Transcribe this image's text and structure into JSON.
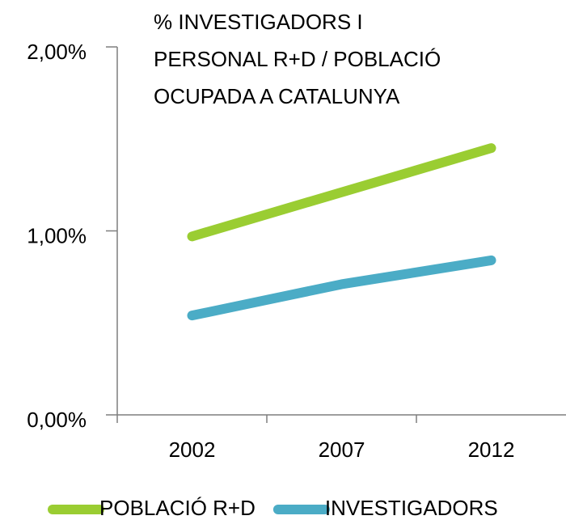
{
  "chart_data": {
    "type": "line",
    "title": [
      "% INVESTIGADORS  I",
      "PERSONAL R+D / POBLACIÓ",
      "OCUPADA A CATALUNYA"
    ],
    "categories": [
      "2002",
      "2007",
      "2012"
    ],
    "series": [
      {
        "name": "POBLACIÓ R+D",
        "color": "#9acd32",
        "values": [
          0.97,
          1.21,
          1.45
        ]
      },
      {
        "name": "INVESTIGADORS",
        "color": "#4bacc6",
        "values": [
          0.54,
          0.71,
          0.84
        ]
      }
    ],
    "ylim": [
      0,
      2
    ],
    "yticks": [
      {
        "value": 0,
        "label": "0,00%"
      },
      {
        "value": 1,
        "label": "1,00%"
      },
      {
        "value": 2,
        "label": "2,00%"
      }
    ],
    "legend": "bottom"
  }
}
